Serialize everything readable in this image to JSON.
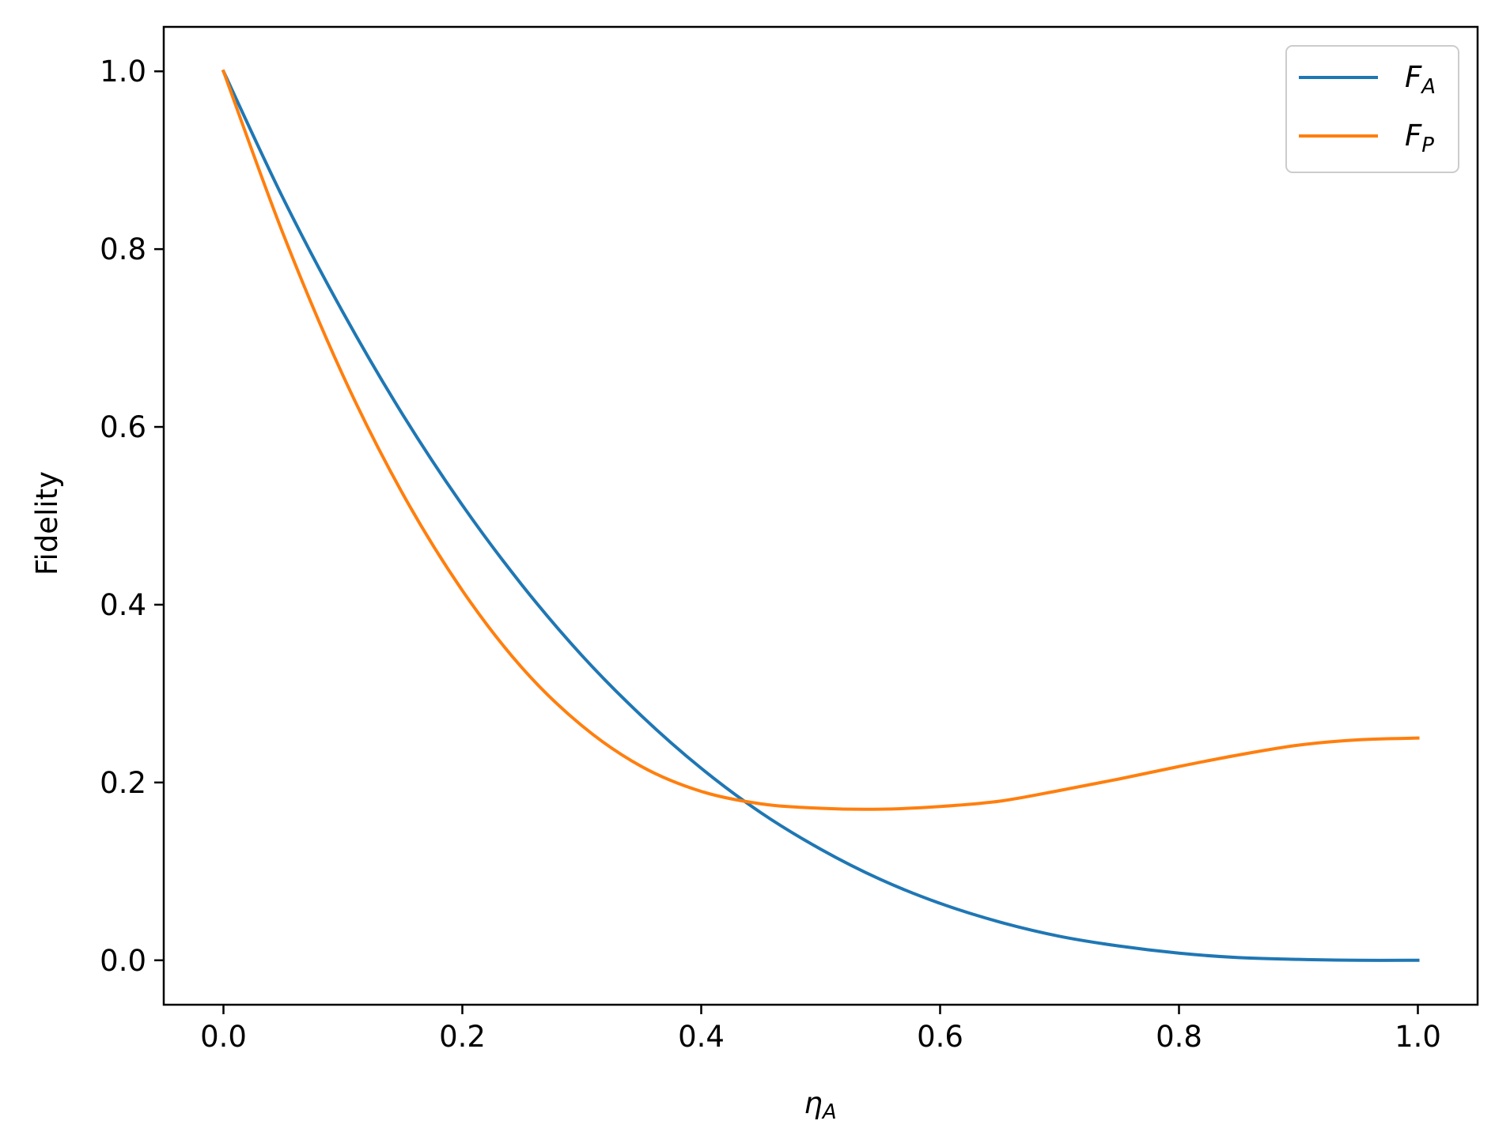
{
  "chart_data": {
    "type": "line",
    "xlabel": "η_A",
    "xlabel_main": "η",
    "xlabel_sub": "A",
    "ylabel": "Fidelity",
    "xlim": [
      -0.05,
      1.05
    ],
    "ylim": [
      -0.05,
      1.05
    ],
    "x_ticks": [
      0.0,
      0.2,
      0.4,
      0.6,
      0.8,
      1.0
    ],
    "x_tick_labels": [
      "0.0",
      "0.2",
      "0.4",
      "0.6",
      "0.8",
      "1.0"
    ],
    "y_ticks": [
      0.0,
      0.2,
      0.4,
      0.6,
      0.8,
      1.0
    ],
    "y_tick_labels": [
      "0.0",
      "0.2",
      "0.4",
      "0.6",
      "0.8",
      "1.0"
    ],
    "grid": false,
    "legend_position": "top-right",
    "x": [
      0.0,
      0.05,
      0.1,
      0.15,
      0.2,
      0.25,
      0.3,
      0.35,
      0.4,
      0.45,
      0.5,
      0.55,
      0.6,
      0.65,
      0.7,
      0.75,
      0.8,
      0.85,
      0.9,
      0.95,
      1.0
    ],
    "series": [
      {
        "name": "F_A",
        "label_main": "F",
        "label_sub": "A",
        "color": "#1f77b4",
        "values": [
          1.0,
          0.857,
          0.729,
          0.614,
          0.512,
          0.422,
          0.343,
          0.275,
          0.216,
          0.166,
          0.125,
          0.091,
          0.064,
          0.043,
          0.027,
          0.016,
          0.008,
          0.003,
          0.001,
          0.0,
          0.0
        ]
      },
      {
        "name": "F_P",
        "label_main": "F",
        "label_sub": "P",
        "color": "#ff7f0e",
        "values": [
          1.0,
          0.817,
          0.658,
          0.525,
          0.416,
          0.329,
          0.264,
          0.218,
          0.19,
          0.176,
          0.171,
          0.17,
          0.173,
          0.179,
          0.191,
          0.204,
          0.218,
          0.231,
          0.242,
          0.248,
          0.25
        ]
      }
    ]
  }
}
